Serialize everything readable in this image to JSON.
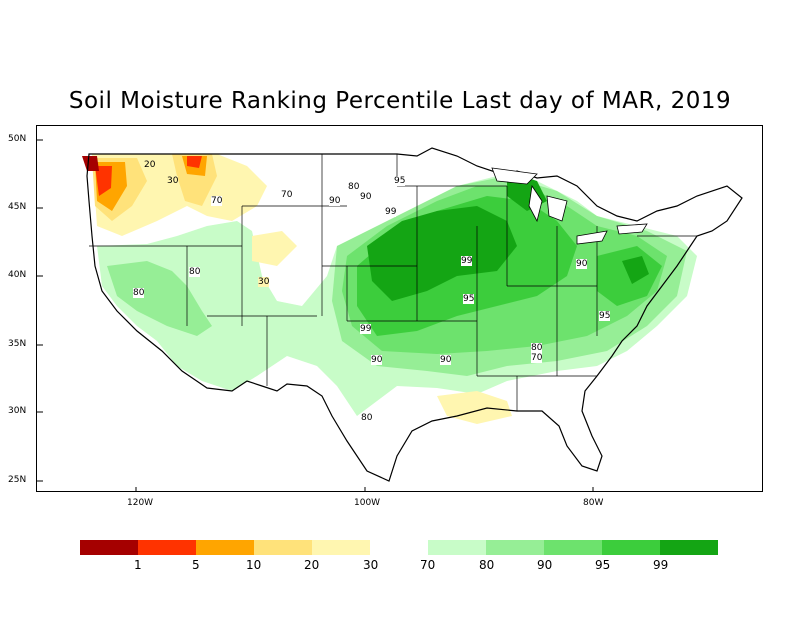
{
  "title": "Soil Moisture Ranking Percentile Last day of MAR, 2019",
  "axes": {
    "lat_labels": [
      "50N",
      "45N",
      "40N",
      "35N",
      "30N",
      "25N"
    ],
    "lon_labels": [
      "120W",
      "100W",
      "80W"
    ]
  },
  "legend": {
    "dry_colors": [
      "#a50000",
      "#ff3300",
      "#ffa500",
      "#ffe27a",
      "#fff6b0"
    ],
    "wet_colors": [
      "#c8fcc8",
      "#96ee96",
      "#6de26d",
      "#3ccd3c",
      "#14a514"
    ],
    "dry_labels": [
      "1",
      "5",
      "10",
      "20",
      "30"
    ],
    "wet_labels": [
      "70",
      "80",
      "90",
      "95",
      "99"
    ]
  },
  "contour_labels": [
    "20",
    "30",
    "70",
    "70",
    "80",
    "95",
    "90",
    "99",
    "99",
    "90",
    "80",
    "80",
    "30",
    "99",
    "95",
    "90",
    "95",
    "90",
    "90",
    "80",
    "80",
    "70"
  ]
}
